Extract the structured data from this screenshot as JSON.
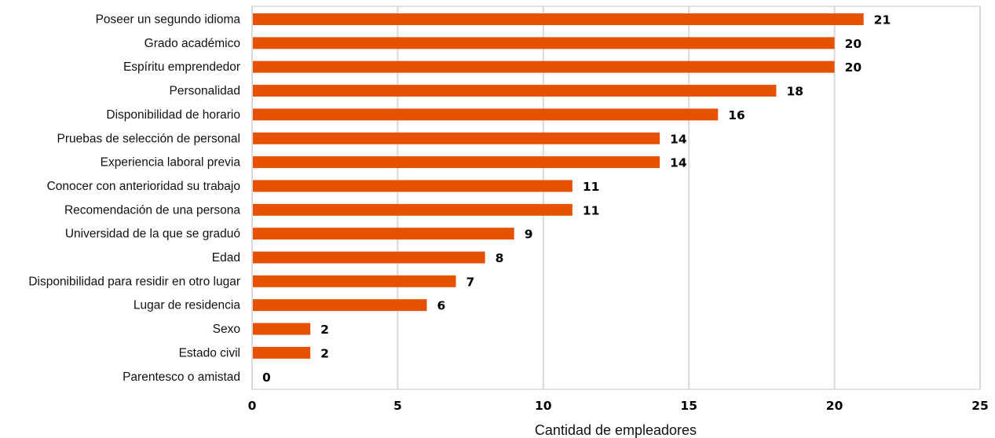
{
  "chart_data": {
    "type": "bar",
    "orientation": "horizontal",
    "categories": [
      "Poseer un segundo idioma",
      "Grado académico",
      "Espíritu emprendedor",
      "Personalidad",
      "Disponibilidad de horario",
      "Pruebas de selección de personal",
      "Experiencia laboral previa",
      "Conocer con anterioridad su trabajo",
      "Recomendación de una persona",
      "Universidad de la que se graduó",
      "Edad",
      "Disponibilidad para residir en otro lugar",
      "Lugar de residencia",
      "Sexo",
      "Estado civil",
      "Parentesco o amistad"
    ],
    "values": [
      21,
      20,
      20,
      18,
      16,
      14,
      14,
      11,
      11,
      9,
      8,
      7,
      6,
      2,
      2,
      0
    ],
    "value_labels": [
      "21",
      "20",
      "20",
      "18",
      "16",
      "14",
      "14",
      "11",
      "11",
      "9",
      "8",
      "7",
      "6",
      "2",
      "2",
      "0"
    ],
    "xlabel": "Cantidad de empleadores",
    "ylabel": "",
    "xlim": [
      0,
      25
    ],
    "xticks": [
      0,
      5,
      10,
      15,
      20,
      25
    ],
    "xtick_labels": [
      "0",
      "5",
      "10",
      "15",
      "20",
      "25"
    ],
    "grid": "vertical",
    "legend": "none",
    "bar_color": "#e65100"
  }
}
